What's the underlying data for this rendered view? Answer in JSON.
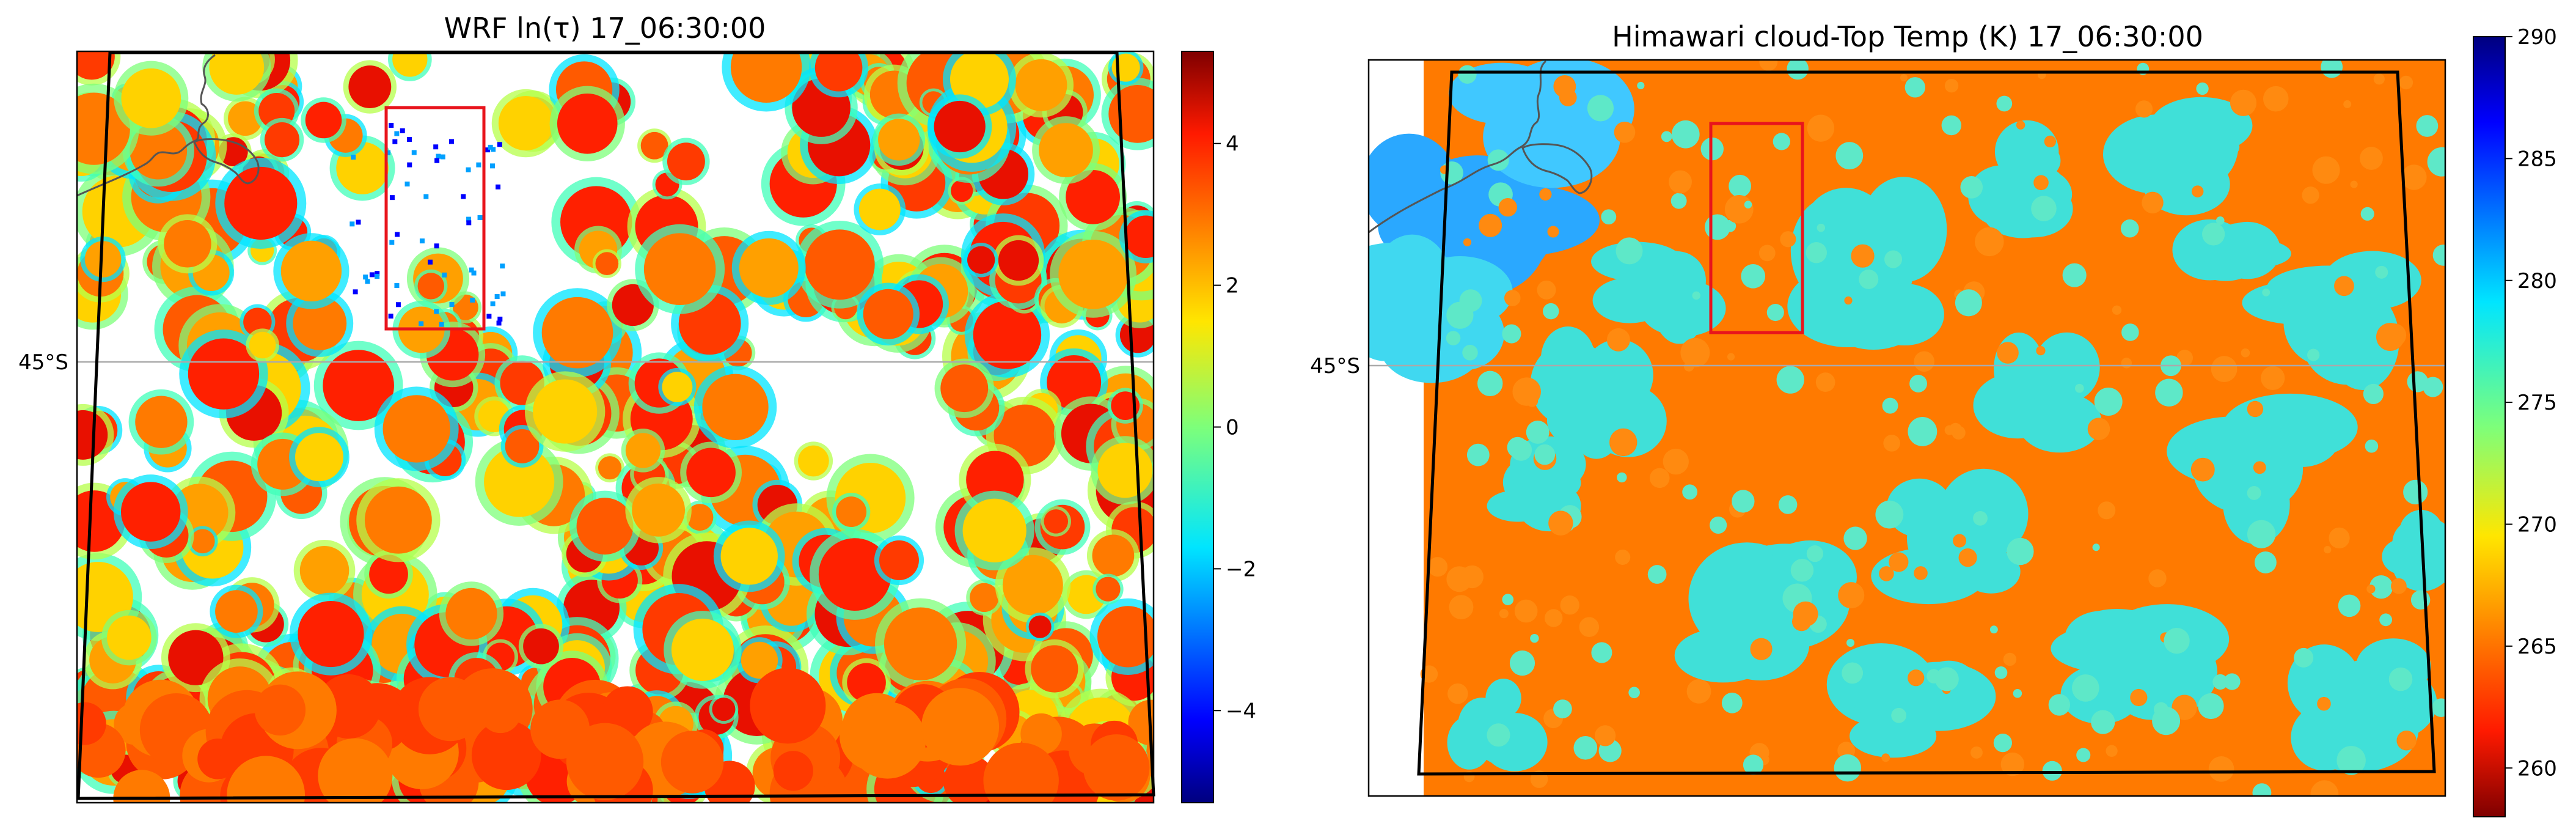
{
  "chart_data": [
    {
      "type": "heatmap",
      "title": "WRF ln(τ) 17_06:30:00",
      "latitude_label": "45°S",
      "colormap": "jet",
      "colorbar": {
        "vmin": -5.3,
        "vmax": 5.3,
        "ticks": [
          4,
          2,
          0,
          -2,
          -4
        ],
        "tick_labels": [
          "4",
          "2",
          "0",
          "−2",
          "−4"
        ]
      },
      "field": "ln(tau)",
      "highlight_box": "red rectangle",
      "domain_outline": "black quadrilateral",
      "grid": false
    },
    {
      "type": "heatmap",
      "title": "Himawari cloud-Top Temp (K) 17_06:30:00",
      "latitude_label": "45°S",
      "colormap": "jet_r",
      "colorbar": {
        "vmin": 258,
        "vmax": 290,
        "ticks": [
          290,
          285,
          280,
          275,
          270,
          265,
          260
        ],
        "tick_labels": [
          "290",
          "285",
          "280",
          "275",
          "270",
          "265",
          "260"
        ]
      },
      "field": "cloud-top temperature (K)",
      "highlight_box": "red rectangle",
      "domain_outline": "black quadrilateral",
      "grid": false
    }
  ],
  "colors": {
    "outline": "#000000",
    "highlight": "#e8141c",
    "coastline": "#555555",
    "latitude_line": "#aaaaaa"
  }
}
